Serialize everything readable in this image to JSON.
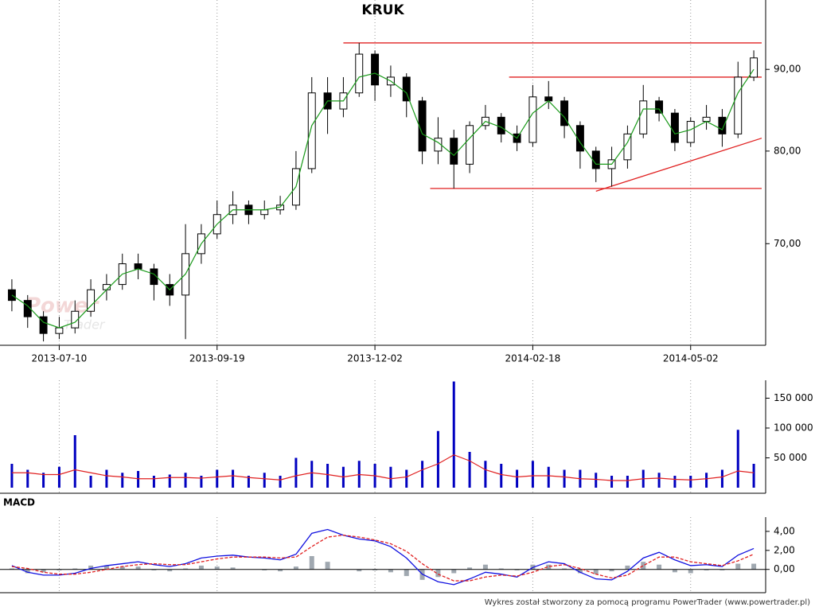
{
  "chart_data": [
    {
      "type": "candlestick",
      "title": "KRUK",
      "watermark": [
        "Power",
        "Trader"
      ],
      "log_scale": true,
      "grid": "x",
      "categories": [
        null,
        null,
        null,
        "2013-07-10",
        null,
        null,
        null,
        null,
        null,
        null,
        null,
        null,
        null,
        "2013-09-19",
        null,
        null,
        null,
        null,
        null,
        null,
        null,
        null,
        null,
        "2013-12-02",
        null,
        null,
        null,
        null,
        null,
        null,
        null,
        null,
        null,
        "2014-02-18",
        null,
        null,
        null,
        null,
        null,
        null,
        null,
        null,
        null,
        "2014-05-02",
        null,
        null,
        null,
        null
      ],
      "open": [
        65.5,
        64.5,
        63,
        61.5,
        62,
        63.5,
        65.5,
        66,
        68,
        67.5,
        66,
        65,
        69,
        71,
        73,
        74,
        73,
        73.5,
        74,
        78,
        87,
        85,
        87,
        92,
        88,
        89,
        86,
        80,
        81.5,
        78.5,
        83,
        84,
        82,
        81,
        86.5,
        86,
        83,
        80,
        78,
        79,
        82,
        86,
        84.5,
        81,
        83.5,
        84,
        82,
        89
      ],
      "high": [
        66.5,
        65,
        63.5,
        63,
        64.5,
        66.5,
        67,
        69,
        69,
        68,
        67,
        72,
        72,
        74.5,
        75.5,
        74.5,
        74.5,
        75,
        80,
        89,
        89,
        89,
        93.5,
        92.5,
        90.5,
        89.5,
        86.5,
        84,
        82.5,
        83.5,
        85.5,
        84.5,
        83,
        88,
        88.5,
        86.5,
        83.5,
        80.5,
        80.5,
        83,
        88,
        86.5,
        85,
        84,
        85.5,
        85,
        91,
        92.5
      ],
      "low": [
        63.5,
        62,
        60.8,
        61,
        61.5,
        63,
        64.5,
        65.5,
        66.5,
        64.5,
        64,
        61,
        68,
        70.5,
        72,
        72,
        72.5,
        73,
        73.5,
        77.5,
        82,
        84,
        86.5,
        86,
        86.5,
        84,
        78.5,
        78.5,
        75.8,
        77.5,
        82.5,
        81,
        80,
        80.5,
        85,
        81.5,
        78,
        76.5,
        76,
        78,
        81.5,
        83.5,
        80,
        80.5,
        82.5,
        80.5,
        81.5,
        88.5
      ],
      "close": [
        64.5,
        63,
        61.5,
        62,
        63.5,
        65.5,
        66,
        68,
        67.5,
        66,
        65,
        69,
        71,
        73,
        74,
        73,
        73.5,
        74,
        78,
        87,
        85,
        87,
        92,
        88,
        89,
        86,
        80,
        81.5,
        78.5,
        83,
        84,
        82,
        81,
        86.5,
        86,
        83,
        80,
        78,
        79,
        82,
        86,
        84.5,
        81,
        83.5,
        84,
        82,
        89,
        91.5
      ],
      "ma": [
        65,
        64,
        62.5,
        62,
        62.5,
        64,
        65.5,
        67,
        67.5,
        67,
        65.5,
        67,
        70,
        72,
        73.5,
        73.5,
        73.5,
        73.8,
        76,
        83,
        86,
        86,
        89,
        89.5,
        88.5,
        87,
        82,
        81,
        79.5,
        81.5,
        83.5,
        82.8,
        81.5,
        84.5,
        86,
        84,
        81,
        78.5,
        78.5,
        81,
        85,
        85,
        82,
        82.5,
        83.5,
        82.5,
        87,
        90
      ],
      "ma_color": "#1a9a1a",
      "trend_color": "#e02020",
      "trendlines": [
        {
          "x": [
            21,
            47.5
          ],
          "y": [
            93.5,
            93.5
          ]
        },
        {
          "x": [
            31.5,
            47.5
          ],
          "y": [
            89,
            89
          ]
        },
        {
          "x": [
            26.5,
            47.5
          ],
          "y": [
            75.8,
            75.8
          ]
        },
        {
          "x": [
            37,
            47.5
          ],
          "y": [
            75.5,
            81.5
          ]
        }
      ],
      "ylim": [
        60.6,
        98.9
      ],
      "yticks": [
        {
          "value": 70,
          "label": "70,00"
        },
        {
          "value": 80,
          "label": "80,00"
        },
        {
          "value": 90,
          "label": "90,00"
        }
      ]
    },
    {
      "type": "bar",
      "color": "#0000c0",
      "ma_color": "#e02020",
      "values": [
        40000,
        30000,
        25000,
        35000,
        88000,
        20000,
        30000,
        25000,
        28000,
        20000,
        22000,
        25000,
        20000,
        30000,
        30000,
        20000,
        25000,
        20000,
        50000,
        45000,
        40000,
        35000,
        45000,
        40000,
        35000,
        30000,
        45000,
        95000,
        178000,
        60000,
        45000,
        40000,
        30000,
        45000,
        35000,
        30000,
        30000,
        25000,
        20000,
        20000,
        30000,
        25000,
        20000,
        20000,
        25000,
        30000,
        97000,
        40000
      ],
      "ma": [
        25000,
        25000,
        22000,
        22000,
        30000,
        25000,
        20000,
        18000,
        15000,
        15000,
        17000,
        17000,
        16000,
        18000,
        20000,
        17000,
        15000,
        13000,
        20000,
        25000,
        22000,
        18000,
        22000,
        20000,
        15000,
        18000,
        30000,
        40000,
        55000,
        45000,
        30000,
        22000,
        18000,
        20000,
        20000,
        18000,
        15000,
        14000,
        12000,
        12000,
        15000,
        16000,
        14000,
        13000,
        15000,
        18000,
        28000,
        25000
      ],
      "ylim": [
        0,
        180000
      ],
      "yticks": [
        {
          "value": 50000,
          "label": "50 000"
        },
        {
          "value": 100000,
          "label": "100 000"
        },
        {
          "value": 150000,
          "label": "150 000"
        }
      ]
    },
    {
      "type": "macd",
      "title": "MACD",
      "series": [
        {
          "color": "#1010e0",
          "values": [
            0.4,
            -0.3,
            -0.6,
            -0.6,
            -0.4,
            0.1,
            0.4,
            0.6,
            0.8,
            0.5,
            0.3,
            0.6,
            1.2,
            1.4,
            1.5,
            1.3,
            1.2,
            1.0,
            1.6,
            3.8,
            4.2,
            3.6,
            3.2,
            3.0,
            2.4,
            1.2,
            -0.5,
            -1.3,
            -1.6,
            -1.0,
            -0.3,
            -0.5,
            -0.8,
            0.2,
            0.8,
            0.6,
            -0.3,
            -1.0,
            -1.1,
            -0.2,
            1.2,
            1.8,
            1.0,
            0.4,
            0.5,
            0.3,
            1.5,
            2.2
          ]
        },
        {
          "color": "#e02020",
          "values": [
            0.3,
            0.1,
            -0.3,
            -0.5,
            -0.5,
            -0.3,
            0.0,
            0.3,
            0.5,
            0.6,
            0.5,
            0.5,
            0.8,
            1.1,
            1.3,
            1.3,
            1.3,
            1.2,
            1.3,
            2.4,
            3.4,
            3.6,
            3.4,
            3.1,
            2.7,
            1.9,
            0.6,
            -0.5,
            -1.2,
            -1.2,
            -0.8,
            -0.6,
            -0.7,
            -0.3,
            0.3,
            0.5,
            0.1,
            -0.5,
            -0.9,
            -0.6,
            0.4,
            1.3,
            1.3,
            0.8,
            0.6,
            0.4,
            0.9,
            1.6
          ]
        }
      ],
      "histogram": [
        0.1,
        -0.4,
        -0.3,
        -0.1,
        0.1,
        0.4,
        0.4,
        0.3,
        0.3,
        -0.1,
        -0.2,
        0.1,
        0.4,
        0.3,
        0.2,
        0,
        -0.1,
        -0.2,
        0.3,
        1.4,
        0.8,
        0,
        -0.2,
        -0.1,
        -0.3,
        -0.7,
        -1.1,
        -0.8,
        -0.4,
        0.2,
        0.5,
        0.1,
        -0.1,
        0.5,
        0.5,
        0.1,
        -0.4,
        -0.5,
        -0.2,
        0.4,
        0.8,
        0.5,
        -0.3,
        -0.4,
        -0.1,
        -0.1,
        0.6,
        0.6
      ],
      "histogram_color": "#a0a8b0",
      "ylim": [
        -2.2,
        5.5
      ],
      "yticks": [
        {
          "value": 0,
          "label": "0,00"
        },
        {
          "value": 2,
          "label": "2,00"
        },
        {
          "value": 4,
          "label": "4,00"
        }
      ],
      "footer": "Wykres został stworzony za pomocą programu PowerTrader (www.powertrader.pl)"
    }
  ]
}
